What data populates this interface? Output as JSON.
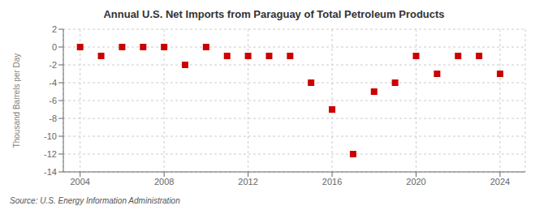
{
  "chart_data": {
    "type": "scatter",
    "title": "Annual U.S. Net Imports from Paraguay of Total Petroleum Products",
    "ylabel": "Thousand Barrels per Day",
    "source": "Source: U.S. Energy Information Administration",
    "x": [
      2004,
      2005,
      2006,
      2007,
      2008,
      2009,
      2010,
      2011,
      2012,
      2013,
      2014,
      2015,
      2016,
      2017,
      2018,
      2019,
      2020,
      2021,
      2022,
      2023,
      2024
    ],
    "values": [
      0,
      -1,
      0,
      0,
      0,
      -2,
      0,
      -1,
      -1,
      -1,
      -1,
      -4,
      -7,
      -12,
      -5,
      -4,
      -1,
      -3,
      -1,
      -1,
      -3
    ],
    "color": "#cc0000",
    "marker": "square",
    "grid": true,
    "xlim": [
      2003.2,
      2025.2
    ],
    "xticks": [
      2004,
      2008,
      2012,
      2016,
      2020,
      2024
    ],
    "ylim": [
      -14,
      2
    ],
    "yticks": [
      2,
      0,
      -2,
      -4,
      -6,
      -8,
      -10,
      -12,
      -14
    ]
  }
}
